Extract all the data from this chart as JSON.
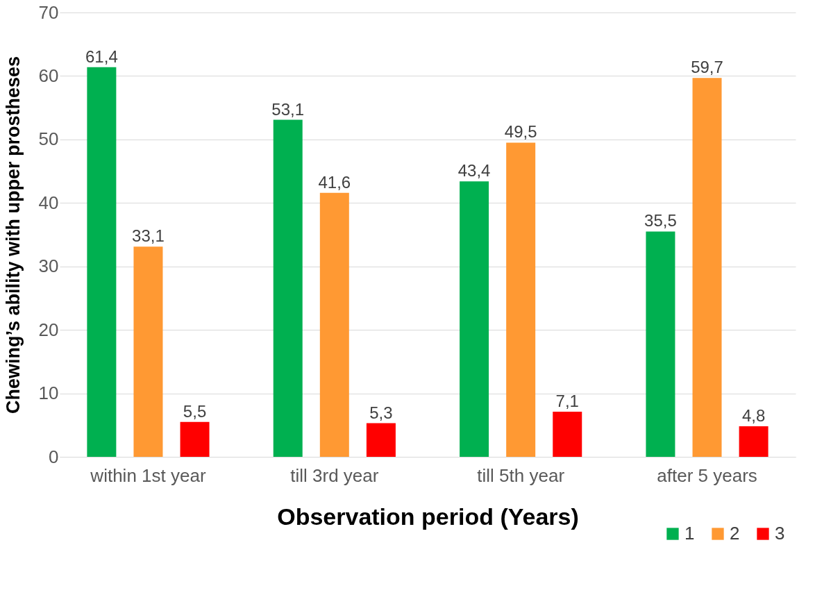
{
  "chart_data": {
    "type": "bar",
    "xlabel": "Observation period (Years)",
    "ylabel": "Chewing’s ability with upper prostheses",
    "categories": [
      "within 1st year",
      "till 3rd year",
      "till 5th year",
      "after 5 years"
    ],
    "series": [
      {
        "name": "1",
        "color": "#00b050",
        "values": [
          61.4,
          53.1,
          43.4,
          35.5
        ],
        "value_labels": [
          "61,4",
          "53,1",
          "43,4",
          "35,5"
        ]
      },
      {
        "name": "2",
        "color": "#ff9933",
        "values": [
          33.1,
          41.6,
          49.5,
          59.7
        ],
        "value_labels": [
          "33,1",
          "41,6",
          "49,5",
          "59,7"
        ]
      },
      {
        "name": "3",
        "color": "#ff0000",
        "values": [
          5.5,
          5.3,
          7.1,
          4.8
        ],
        "value_labels": [
          "5,5",
          "5,3",
          "7,1",
          "4,8"
        ]
      }
    ],
    "ylim": [
      0,
      70
    ],
    "yticks": [
      0,
      10,
      20,
      30,
      40,
      50,
      60,
      70
    ],
    "grid": "y",
    "legend": "bottom right"
  }
}
